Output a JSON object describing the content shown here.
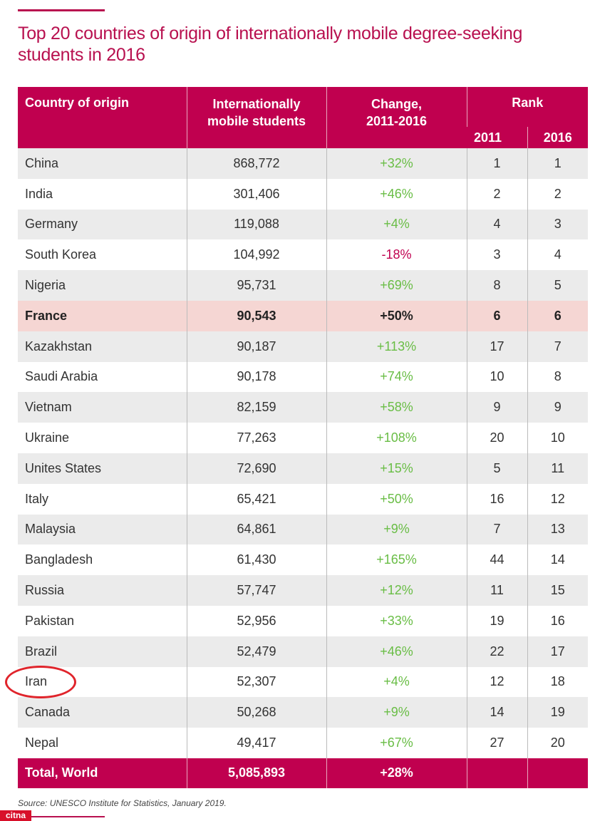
{
  "title": "Top 20 countries of origin of internationally mobile degree-seeking students in 2016",
  "headers": {
    "country": "Country of origin",
    "students": "Internationally mobile students",
    "change": "Change, 2011-2016",
    "rank": "Rank",
    "rank2011": "2011",
    "rank2016": "2016"
  },
  "rows": [
    {
      "country": "China",
      "students": "868,772",
      "change": "+32%",
      "r2011": "1",
      "r2016": "1"
    },
    {
      "country": "India",
      "students": "301,406",
      "change": "+46%",
      "r2011": "2",
      "r2016": "2"
    },
    {
      "country": "Germany",
      "students": "119,088",
      "change": "+4%",
      "r2011": "4",
      "r2016": "3"
    },
    {
      "country": "South Korea",
      "students": "104,992",
      "change": "-18%",
      "r2011": "3",
      "r2016": "4"
    },
    {
      "country": "Nigeria",
      "students": "95,731",
      "change": "+69%",
      "r2011": "8",
      "r2016": "5"
    },
    {
      "country": "France",
      "students": "90,543",
      "change": "+50%",
      "r2011": "6",
      "r2016": "6"
    },
    {
      "country": "Kazakhstan",
      "students": "90,187",
      "change": "+113%",
      "r2011": "17",
      "r2016": "7"
    },
    {
      "country": "Saudi Arabia",
      "students": "90,178",
      "change": "+74%",
      "r2011": "10",
      "r2016": "8"
    },
    {
      "country": "Vietnam",
      "students": "82,159",
      "change": "+58%",
      "r2011": "9",
      "r2016": "9"
    },
    {
      "country": "Ukraine",
      "students": "77,263",
      "change": "+108%",
      "r2011": "20",
      "r2016": "10"
    },
    {
      "country": "Unites States",
      "students": "72,690",
      "change": "+15%",
      "r2011": "5",
      "r2016": "11"
    },
    {
      "country": "Italy",
      "students": "65,421",
      "change": "+50%",
      "r2011": "16",
      "r2016": "12"
    },
    {
      "country": "Malaysia",
      "students": "64,861",
      "change": "+9%",
      "r2011": "7",
      "r2016": "13"
    },
    {
      "country": "Bangladesh",
      "students": "61,430",
      "change": "+165%",
      "r2011": "44",
      "r2016": "14"
    },
    {
      "country": "Russia",
      "students": "57,747",
      "change": "+12%",
      "r2011": "11",
      "r2016": "15"
    },
    {
      "country": "Pakistan",
      "students": "52,956",
      "change": "+33%",
      "r2011": "19",
      "r2016": "16"
    },
    {
      "country": "Brazil",
      "students": "52,479",
      "change": "+46%",
      "r2011": "22",
      "r2016": "17"
    },
    {
      "country": "Iran",
      "students": "52,307",
      "change": "+4%",
      "r2011": "12",
      "r2016": "18"
    },
    {
      "country": "Canada",
      "students": "50,268",
      "change": "+9%",
      "r2011": "14",
      "r2016": "19"
    },
    {
      "country": "Nepal",
      "students": "49,417",
      "change": "+67%",
      "r2011": "27",
      "r2016": "20"
    }
  ],
  "total": {
    "country": "Total, World",
    "students": "5,085,893",
    "change": "+28%"
  },
  "source": "Source: UNESCO Institute for Statistics, January 2019.",
  "logo": "citna",
  "highlight_row": "France",
  "circled_row": "Iran"
}
